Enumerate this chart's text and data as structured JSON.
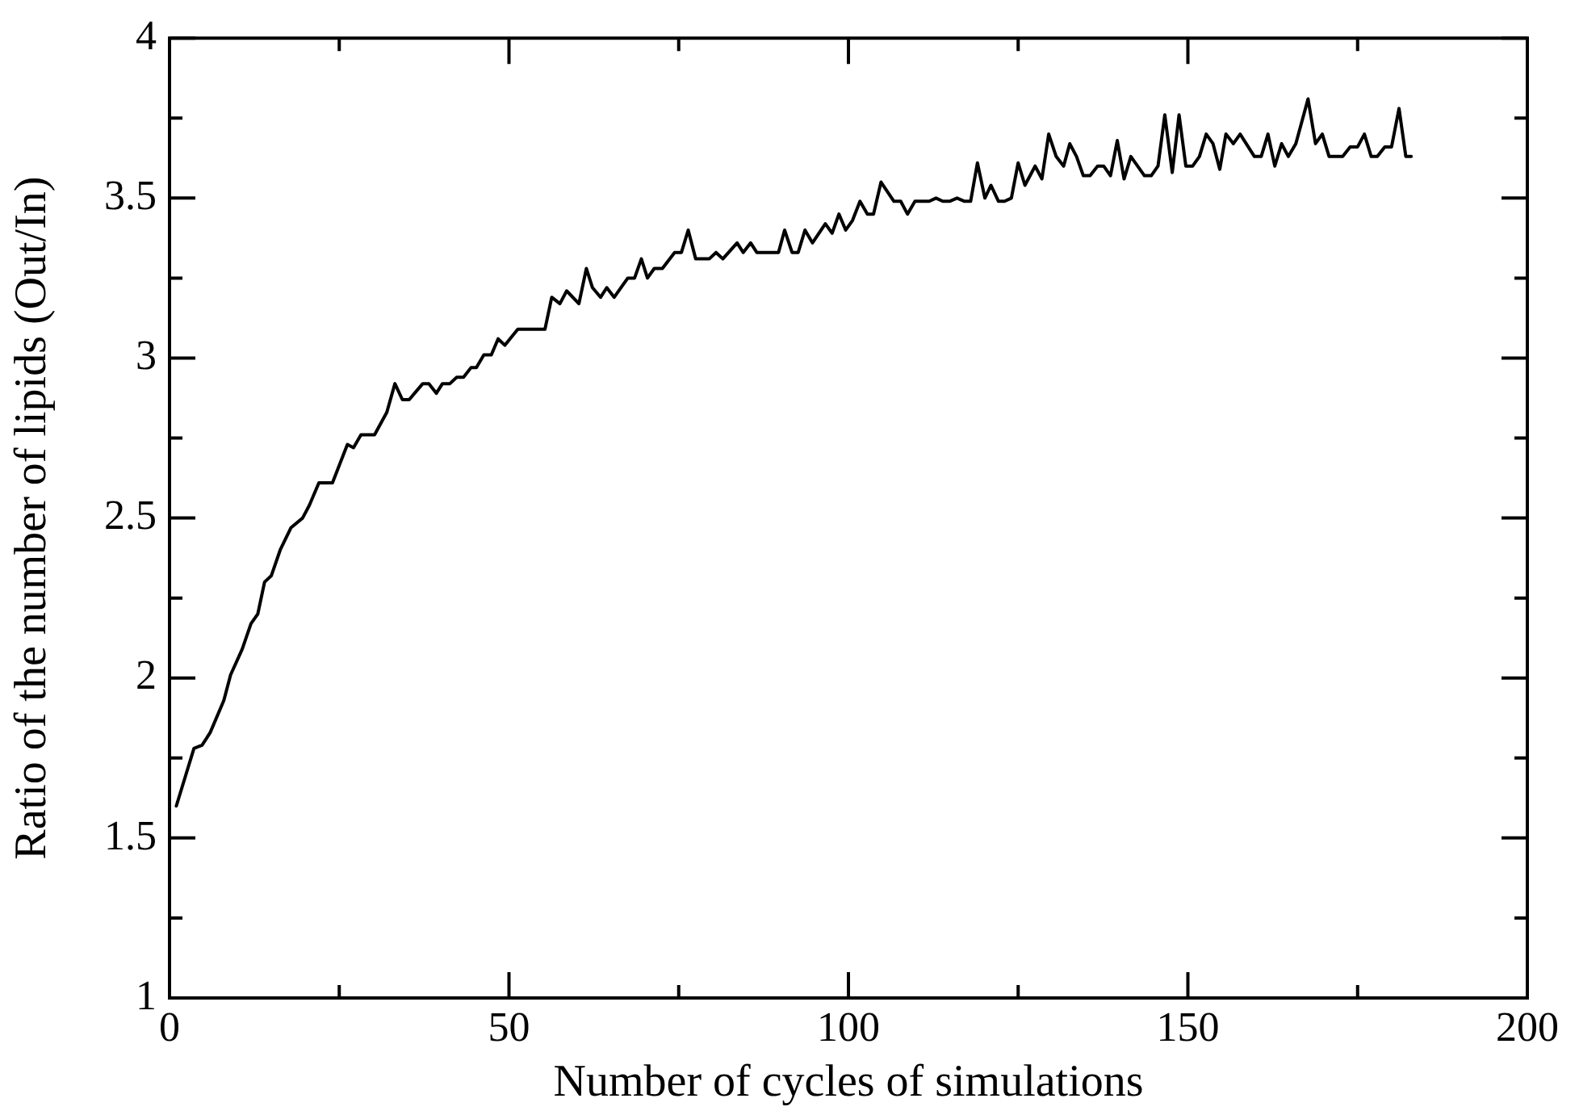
{
  "chart_data": {
    "type": "line",
    "xlabel": "Number of cycles of simulations",
    "ylabel": "Ratio of the number of lipids (Out/In)",
    "xlim": [
      0,
      200
    ],
    "ylim": [
      1,
      4
    ],
    "xticks": [
      0,
      {
        "value": 25,
        "label": null
      },
      50,
      {
        "value": 75,
        "label": null
      },
      100,
      {
        "value": 125,
        "label": null
      },
      150,
      {
        "value": 175,
        "label": null
      },
      200
    ],
    "yticks": [
      1,
      {
        "value": 1.25,
        "label": null
      },
      1.5,
      {
        "value": 1.75,
        "label": null
      },
      2,
      {
        "value": 2.25,
        "label": null
      },
      2.5,
      {
        "value": 2.75,
        "label": null
      },
      3,
      {
        "value": 3.25,
        "label": null
      },
      3.5,
      {
        "value": 3.75,
        "label": null
      },
      4
    ],
    "grid": false,
    "legend": false,
    "marker": "none",
    "line_style": "solid",
    "series": [
      {
        "color": "#000000",
        "x": [
          1,
          3.6,
          4.8,
          6,
          8,
          9,
          10.7,
          12,
          13,
          14,
          15,
          16.3,
          17.9,
          19.6,
          20.6,
          22,
          24,
          26.2,
          27.1,
          28.2,
          30.2,
          32,
          33.2,
          34.3,
          35.3,
          37.3,
          38.2,
          39.3,
          40.2,
          41.3,
          42.3,
          43.3,
          44.4,
          45.2,
          46.3,
          47.4,
          48.4,
          49.4,
          51.3,
          55.3,
          56.3,
          57.5,
          58.5,
          60.3,
          61.4,
          62.3,
          63.5,
          64.4,
          65.5,
          67.5,
          68.5,
          69.5,
          70.4,
          71.4,
          72.6,
          74.4,
          75.4,
          76.4,
          77.5,
          79.5,
          80.5,
          81.5,
          83.6,
          84.5,
          85.6,
          86.5,
          89.7,
          90.6,
          91.7,
          92.6,
          93.6,
          94.7,
          96.6,
          97.6,
          98.6,
          99.6,
          100.6,
          101.7,
          102.8,
          103.7,
          104.8,
          106.7,
          107.7,
          108.7,
          109.8,
          111.9,
          112.9,
          113.9,
          114.9,
          116,
          117.1,
          118,
          119,
          120.1,
          121,
          122.1,
          123,
          124,
          125,
          126,
          127.5,
          128.5,
          129.5,
          130.6,
          131.7,
          132.6,
          133.6,
          134.6,
          135.6,
          136.7,
          137.6,
          138.6,
          139.6,
          140.6,
          141.6,
          143.6,
          144.6,
          145.6,
          146.6,
          147.7,
          148.7,
          149.7,
          150.7,
          151.7,
          152.7,
          153.7,
          154.7,
          155.6,
          156.7,
          157.7,
          159.8,
          160.8,
          161.8,
          162.8,
          163.8,
          164.8,
          165.9,
          167.7,
          168.8,
          169.8,
          170.8,
          172.8,
          173.9,
          175,
          176,
          177,
          177.9,
          179,
          180,
          181.1,
          182.1,
          182.9
        ],
        "values": [
          1.6,
          1.78,
          1.79,
          1.83,
          1.93,
          2.01,
          2.09,
          2.17,
          2.2,
          2.3,
          2.32,
          2.4,
          2.47,
          2.5,
          2.54,
          2.61,
          2.61,
          2.73,
          2.72,
          2.76,
          2.76,
          2.83,
          2.92,
          2.87,
          2.87,
          2.92,
          2.92,
          2.89,
          2.92,
          2.92,
          2.94,
          2.94,
          2.97,
          2.97,
          3.01,
          3.01,
          3.06,
          3.04,
          3.09,
          3.09,
          3.19,
          3.17,
          3.21,
          3.17,
          3.28,
          3.22,
          3.19,
          3.22,
          3.19,
          3.25,
          3.25,
          3.31,
          3.25,
          3.28,
          3.28,
          3.33,
          3.33,
          3.4,
          3.31,
          3.31,
          3.33,
          3.31,
          3.36,
          3.33,
          3.36,
          3.33,
          3.33,
          3.4,
          3.33,
          3.33,
          3.4,
          3.36,
          3.42,
          3.39,
          3.45,
          3.4,
          3.43,
          3.49,
          3.45,
          3.45,
          3.55,
          3.49,
          3.49,
          3.45,
          3.49,
          3.49,
          3.5,
          3.49,
          3.49,
          3.5,
          3.49,
          3.49,
          3.61,
          3.5,
          3.54,
          3.49,
          3.49,
          3.5,
          3.61,
          3.54,
          3.6,
          3.56,
          3.7,
          3.63,
          3.6,
          3.67,
          3.63,
          3.57,
          3.57,
          3.6,
          3.6,
          3.57,
          3.68,
          3.56,
          3.63,
          3.57,
          3.57,
          3.6,
          3.76,
          3.58,
          3.76,
          3.6,
          3.6,
          3.63,
          3.7,
          3.67,
          3.59,
          3.7,
          3.67,
          3.7,
          3.63,
          3.63,
          3.7,
          3.6,
          3.67,
          3.63,
          3.67,
          3.81,
          3.67,
          3.7,
          3.63,
          3.63,
          3.66,
          3.66,
          3.7,
          3.63,
          3.63,
          3.66,
          3.66,
          3.78,
          3.63,
          3.63
        ]
      }
    ]
  }
}
